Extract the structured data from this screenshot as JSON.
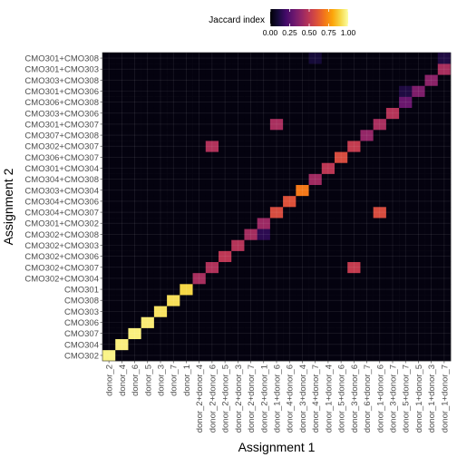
{
  "chart_data": {
    "type": "heatmap",
    "xlabel": "Assignment 1",
    "ylabel": "Assignment 2",
    "x_categories": [
      "donor_2",
      "donor_4",
      "donor_6",
      "donor_5",
      "donor_3",
      "donor_7",
      "donor_1",
      "donor_2+donor_4",
      "donor_2+donor_6",
      "donor_2+donor_5",
      "donor_2+donor_3",
      "donor_2+donor_7",
      "donor_2+donor_1",
      "donor_1+donor_6",
      "donor_4+donor_6",
      "donor_3+donor_4",
      "donor_4+donor_7",
      "donor_1+donor_4",
      "donor_5+donor_6",
      "donor_3+donor_6",
      "donor_6+donor_7",
      "donor_1+donor_6",
      "donor_3+donor_7",
      "donor_5+donor_7",
      "donor_1+donor_5",
      "donor_1+donor_3",
      "donor_1+donor_7"
    ],
    "y_categories": [
      "CMO302",
      "CMO304",
      "CMO307",
      "CMO306",
      "CMO303",
      "CMO308",
      "CMO301",
      "CMO302+CMO304",
      "CMO302+CMO307",
      "CMO302+CMO306",
      "CMO302+CMO303",
      "CMO302+CMO308",
      "CMO301+CMO302",
      "CMO304+CMO307",
      "CMO304+CMO306",
      "CMO303+CMO304",
      "CMO304+CMO308",
      "CMO301+CMO304",
      "CMO306+CMO307",
      "CMO302+CMO307",
      "CMO307+CMO308",
      "CMO301+CMO307",
      "CMO303+CMO306",
      "CMO306+CMO308",
      "CMO301+CMO306",
      "CMO303+CMO308",
      "CMO301+CMO303",
      "CMO301+CMO308"
    ],
    "cells": [
      {
        "x": "donor_2",
        "y": "CMO302",
        "value": 0.97
      },
      {
        "x": "donor_4",
        "y": "CMO304",
        "value": 0.96
      },
      {
        "x": "donor_6",
        "y": "CMO307",
        "value": 0.96
      },
      {
        "x": "donor_5",
        "y": "CMO306",
        "value": 0.95
      },
      {
        "x": "donor_3",
        "y": "CMO303",
        "value": 0.93
      },
      {
        "x": "donor_7",
        "y": "CMO308",
        "value": 0.92
      },
      {
        "x": "donor_1",
        "y": "CMO301",
        "value": 0.9
      },
      {
        "x": "donor_2+donor_4",
        "y": "CMO302+CMO304",
        "value": 0.45
      },
      {
        "x": "donor_2+donor_6",
        "y": "CMO302+CMO307",
        "value": 0.47
      },
      {
        "x": "donor_2+donor_5",
        "y": "CMO302+CMO306",
        "value": 0.5
      },
      {
        "x": "donor_2+donor_3",
        "y": "CMO302+CMO303",
        "value": 0.48
      },
      {
        "x": "donor_2+donor_7",
        "y": "CMO302+CMO308",
        "value": 0.44
      },
      {
        "x": "donor_2+donor_1",
        "y": "CMO301+CMO302",
        "value": 0.42
      },
      {
        "x": "donor_2+donor_1",
        "y": "CMO302+CMO308",
        "value": 0.15
      },
      {
        "x": "donor_1+donor_6",
        "y": "CMO304+CMO307",
        "value": 0.58
      },
      {
        "x": "donor_4+donor_6",
        "y": "CMO304+CMO306",
        "value": 0.6
      },
      {
        "x": "donor_3+donor_4",
        "y": "CMO303+CMO304",
        "value": 0.7
      },
      {
        "x": "donor_4+donor_7",
        "y": "CMO304+CMO308",
        "value": 0.43
      },
      {
        "x": "donor_1+donor_4",
        "y": "CMO301+CMO304",
        "value": 0.5
      },
      {
        "x": "donor_5+donor_6",
        "y": "CMO306+CMO307",
        "value": 0.58
      },
      {
        "x": "donor_3+donor_6",
        "y": "CMO302+CMO307",
        "value": 0.52
      },
      {
        "x": "donor_6+donor_7",
        "y": "CMO307+CMO308",
        "value": 0.4
      },
      {
        "x": "donor_1+donor_6",
        "y": "CMO301+CMO307",
        "value": 0.45
      },
      {
        "x": "donor_3+donor_7",
        "y": "CMO303+CMO306",
        "value": 0.48
      },
      {
        "x": "donor_5+donor_7",
        "y": "CMO306+CMO308",
        "value": 0.3
      },
      {
        "x": "donor_1+donor_5",
        "y": "CMO301+CMO306",
        "value": 0.35
      },
      {
        "x": "donor_5+donor_7",
        "y": "CMO301+CMO306",
        "value": 0.12
      },
      {
        "x": "donor_1+donor_3",
        "y": "CMO303+CMO308",
        "value": 0.38
      },
      {
        "x": "donor_1+donor_7",
        "y": "CMO301+CMO303",
        "value": 0.45
      },
      {
        "x": "donor_1+donor_7",
        "y": "CMO301+CMO308",
        "value": 0.12
      },
      {
        "x": "donor_4+donor_7",
        "y": "CMO301+CMO308",
        "value": 0.1
      }
    ],
    "background_value": 0.02,
    "legend": {
      "title": "Jaccard index",
      "position": "top",
      "ticks": [
        "0.00",
        "0.25",
        "0.50",
        "0.75",
        "1.00"
      ],
      "range": [
        0,
        1
      ]
    },
    "colormap": "inferno",
    "grid": true
  }
}
